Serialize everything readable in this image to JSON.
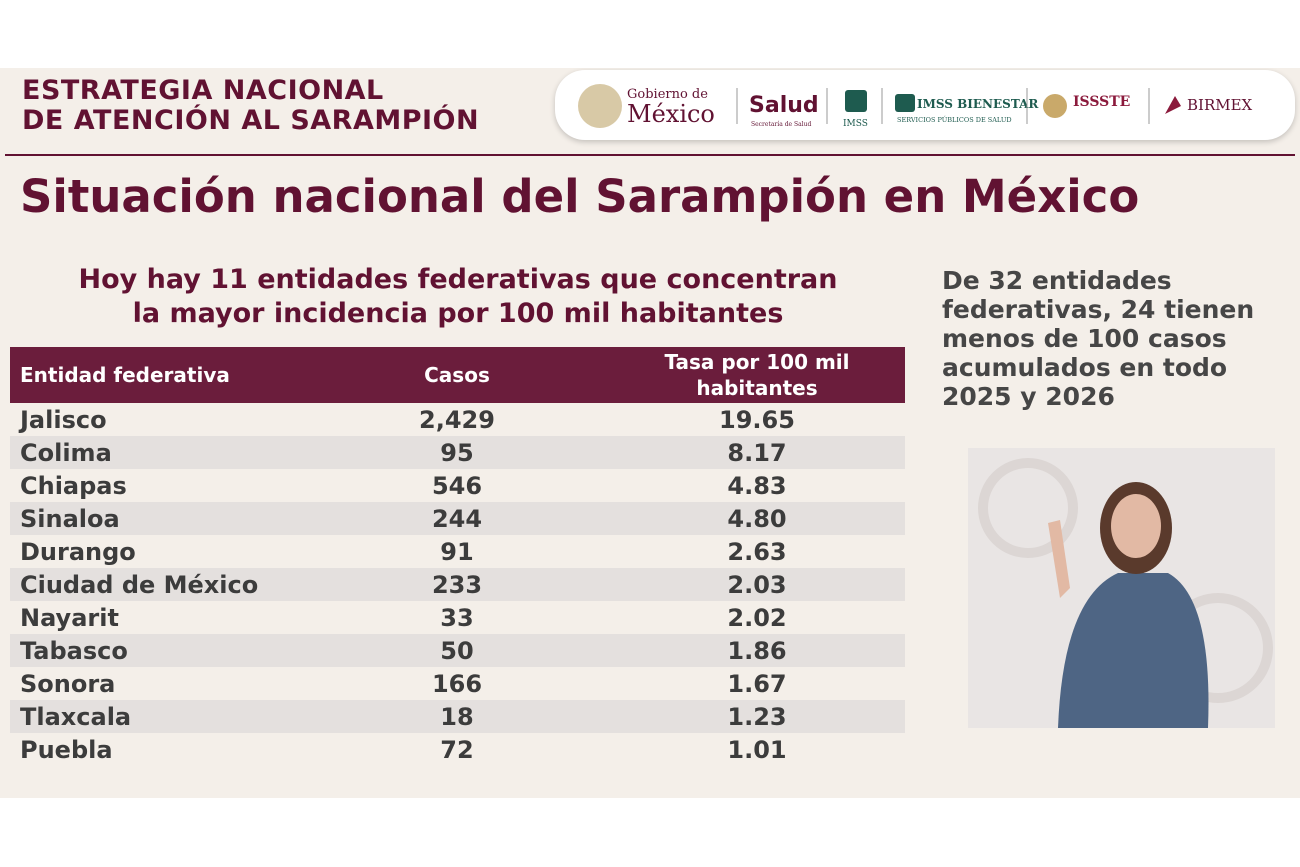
{
  "header": {
    "title_lines": [
      "ESTRATEGIA NACIONAL",
      "DE ATENCIÓN AL SARAMPIÓN"
    ],
    "logos": {
      "gobierno_small": "Gobierno de",
      "gobierno_big": "México",
      "salud": "Salud",
      "salud_sub": "Secretaría de Salud",
      "imss": "IMSS",
      "bienestar": "IMSS BIENESTAR",
      "bienestar_sub": "SERVICIOS PÚBLICOS DE SALUD",
      "issste": "ISSSTE",
      "birmex": "BIRMEX"
    }
  },
  "title": "Situación nacional del Sarampión en México",
  "subtitle_lines": [
    "Hoy hay 11 entidades federativas que concentran",
    "la mayor incidencia por 100 mil habitantes"
  ],
  "table": {
    "columns": [
      "Entidad federativa",
      "Casos",
      "Tasa por 100 mil habitantes"
    ],
    "rows": [
      [
        "Jalisco",
        "2,429",
        "19.65"
      ],
      [
        "Colima",
        "95",
        "8.17"
      ],
      [
        "Chiapas",
        "546",
        "4.83"
      ],
      [
        "Sinaloa",
        "244",
        "4.80"
      ],
      [
        "Durango",
        "91",
        "2.63"
      ],
      [
        "Ciudad de México",
        "233",
        "2.03"
      ],
      [
        "Nayarit",
        "33",
        "2.02"
      ],
      [
        "Tabasco",
        "50",
        "1.86"
      ],
      [
        "Sonora",
        "166",
        "1.67"
      ],
      [
        "Tlaxcala",
        "18",
        "1.23"
      ],
      [
        "Puebla",
        "72",
        "1.01"
      ]
    ]
  },
  "side_note_lines": [
    "De 32 entidades",
    "federativas, 24 tienen",
    "menos de 100 casos",
    "acumulados en todo",
    "2025 y 2026"
  ]
}
